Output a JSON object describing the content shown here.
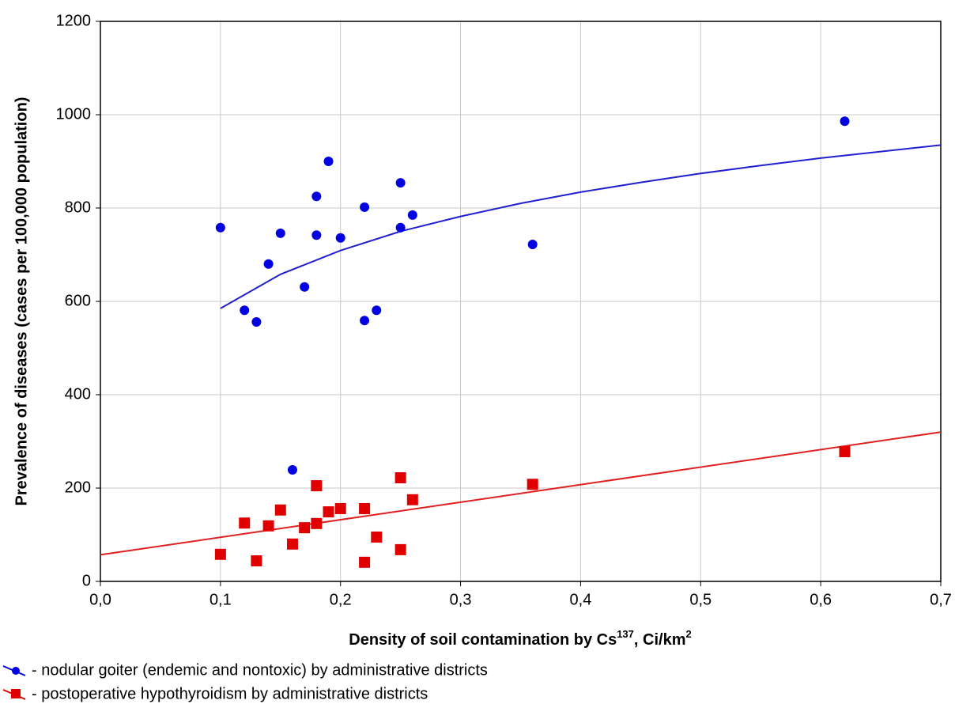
{
  "chart_data": {
    "type": "scatter",
    "xlabel_parts": [
      "Density of soil contamination by Cs",
      "137",
      ", Ci/km",
      "2"
    ],
    "ylabel": "Prevalence of diseases (cases per 100,000 population)",
    "xlim": [
      0,
      0.7
    ],
    "ylim": [
      0,
      1200
    ],
    "xticks": [
      {
        "value": 0,
        "label": "0,0"
      },
      {
        "value": 0.1,
        "label": "0,1"
      },
      {
        "value": 0.2,
        "label": "0,2"
      },
      {
        "value": 0.3,
        "label": "0,3"
      },
      {
        "value": 0.4,
        "label": "0,4"
      },
      {
        "value": 0.5,
        "label": "0,5"
      },
      {
        "value": 0.6,
        "label": "0,6"
      },
      {
        "value": 0.7,
        "label": "0,7"
      }
    ],
    "yticks": [
      0,
      200,
      400,
      600,
      800,
      1000,
      1200
    ],
    "grid": true,
    "legend": "bottom-left",
    "series": [
      {
        "name": "- nodular goiter (endemic and nontoxic) by administrative districts",
        "color": "#0000e0",
        "marker": "circle",
        "x": [
          0.1,
          0.12,
          0.13,
          0.14,
          0.15,
          0.16,
          0.17,
          0.18,
          0.18,
          0.19,
          0.2,
          0.22,
          0.22,
          0.23,
          0.25,
          0.25,
          0.26,
          0.36,
          0.62
        ],
        "values": [
          758,
          581,
          556,
          680,
          746,
          239,
          631,
          825,
          742,
          900,
          736,
          802,
          559,
          581,
          854,
          758,
          785,
          722,
          986
        ]
      },
      {
        "name": "- postoperative hypothyroidism by administrative districts",
        "color": "#e00000",
        "marker": "square",
        "x": [
          0.1,
          0.12,
          0.13,
          0.14,
          0.15,
          0.16,
          0.17,
          0.18,
          0.18,
          0.19,
          0.2,
          0.22,
          0.22,
          0.23,
          0.25,
          0.25,
          0.26,
          0.36,
          0.62
        ],
        "values": [
          58,
          125,
          44,
          119,
          153,
          80,
          115,
          205,
          124,
          149,
          156,
          156,
          41,
          95,
          222,
          68,
          175,
          208,
          278
        ]
      }
    ],
    "fits": [
      {
        "color": "#2020d0",
        "x": [
          0.1,
          0.15,
          0.2,
          0.25,
          0.3,
          0.35,
          0.4,
          0.45,
          0.5,
          0.55,
          0.6,
          0.65,
          0.7
        ],
        "values": [
          585,
          658,
          709,
          750,
          782,
          810,
          834,
          855,
          874,
          891,
          907,
          921,
          935
        ]
      },
      {
        "color": "#e02020",
        "x": [
          0,
          0.7
        ],
        "values": [
          57,
          320
        ]
      }
    ]
  }
}
